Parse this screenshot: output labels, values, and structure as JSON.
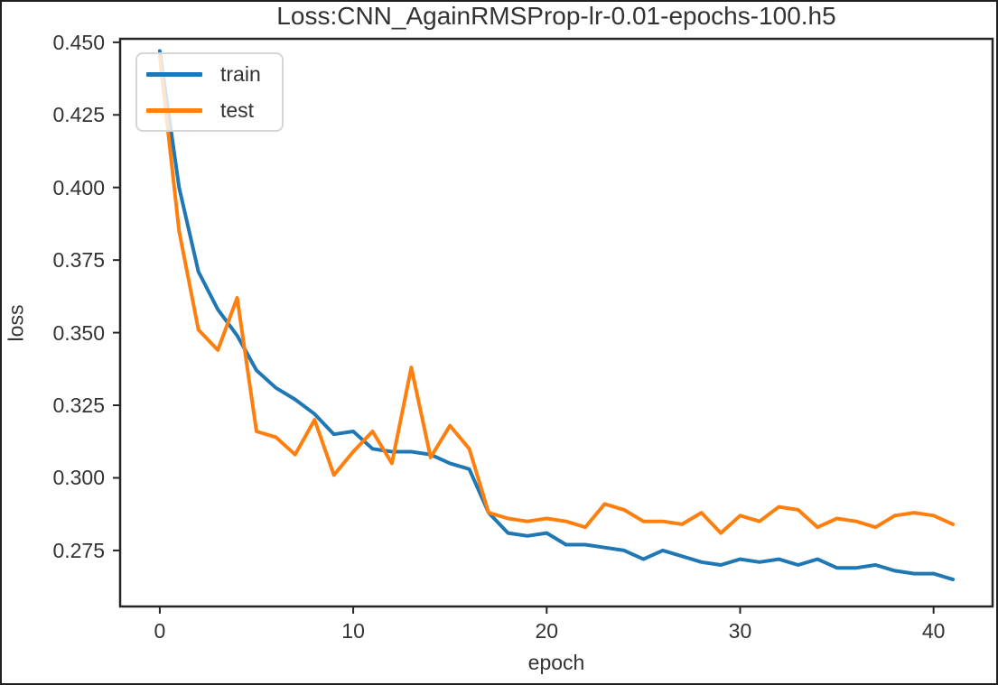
{
  "chart_data": {
    "type": "line",
    "title": "Loss:CNN_AgainRMSProp-lr-0.01-epochs-100.h5",
    "xlabel": "epoch",
    "ylabel": "loss",
    "x": [
      0,
      1,
      2,
      3,
      4,
      5,
      6,
      7,
      8,
      9,
      10,
      11,
      12,
      13,
      14,
      15,
      16,
      17,
      18,
      19,
      20,
      21,
      22,
      23,
      24,
      25,
      26,
      27,
      28,
      29,
      30,
      31,
      32,
      33,
      34,
      35,
      36,
      37,
      38,
      39,
      40,
      41
    ],
    "series": [
      {
        "name": "train",
        "color": "#1f77b4",
        "values": [
          0.447,
          0.4,
          0.371,
          0.358,
          0.349,
          0.337,
          0.331,
          0.327,
          0.322,
          0.315,
          0.316,
          0.31,
          0.309,
          0.309,
          0.308,
          0.305,
          0.303,
          0.288,
          0.281,
          0.28,
          0.281,
          0.277,
          0.277,
          0.276,
          0.275,
          0.272,
          0.275,
          0.273,
          0.271,
          0.27,
          0.272,
          0.271,
          0.272,
          0.27,
          0.272,
          0.269,
          0.269,
          0.27,
          0.268,
          0.267,
          0.267,
          0.265
        ]
      },
      {
        "name": "test",
        "color": "#ff7f0e",
        "values": [
          0.445,
          0.385,
          0.351,
          0.344,
          0.362,
          0.316,
          0.314,
          0.308,
          0.32,
          0.301,
          0.309,
          0.316,
          0.305,
          0.338,
          0.307,
          0.318,
          0.31,
          0.288,
          0.286,
          0.285,
          0.286,
          0.285,
          0.283,
          0.291,
          0.289,
          0.285,
          0.285,
          0.284,
          0.288,
          0.281,
          0.287,
          0.285,
          0.29,
          0.289,
          0.283,
          0.286,
          0.285,
          0.283,
          0.287,
          0.288,
          0.287,
          0.284
        ]
      }
    ],
    "xticks": [
      0,
      10,
      20,
      30,
      40
    ],
    "xtick_labels": [
      "0",
      "10",
      "20",
      "30",
      "40"
    ],
    "yticks": [
      0.45,
      0.425,
      0.4,
      0.375,
      0.35,
      0.325,
      0.3,
      0.275
    ],
    "ytick_labels": [
      "0.450",
      "0.425",
      "0.400",
      "0.375",
      "0.350",
      "0.325",
      "0.300",
      "0.275"
    ],
    "xlim": [
      -2.05,
      43.05
    ],
    "ylim": [
      0.2557,
      0.4512
    ],
    "grid": false,
    "legend_position": "upper-left",
    "legend_entries": [
      "train",
      "test"
    ]
  },
  "colors": {
    "train": "#1f77b4",
    "test": "#ff7f0e",
    "text": "#333333",
    "spine": "#262626",
    "legend_border": "#d6d6d6",
    "frame": "#1f1f1f"
  }
}
